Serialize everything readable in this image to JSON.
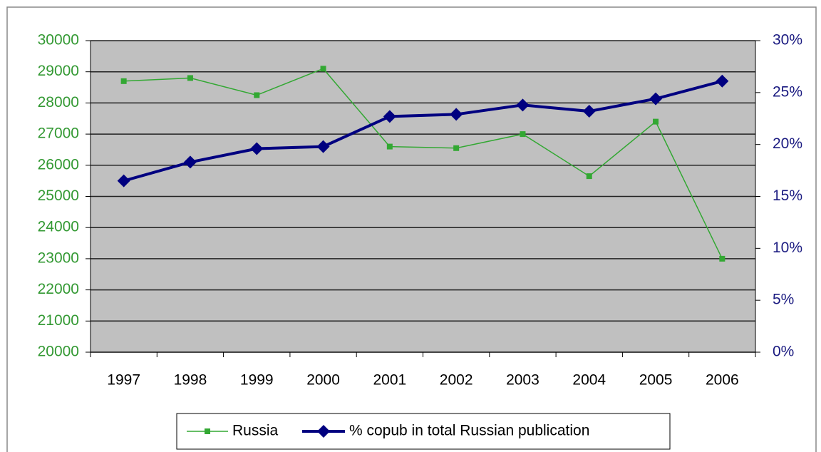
{
  "chart_data": {
    "type": "line",
    "categories": [
      "1997",
      "1998",
      "1999",
      "2000",
      "2001",
      "2002",
      "2003",
      "2004",
      "2005",
      "2006"
    ],
    "series": [
      {
        "name": "Russia",
        "color": "#33a833",
        "axis": "y",
        "values": [
          28700,
          28800,
          28250,
          29100,
          26600,
          26550,
          27000,
          25650,
          27400,
          23000
        ]
      },
      {
        "name": "% copub in total Russian publication",
        "color": "#000080",
        "axis": "y2",
        "values": [
          16.5,
          18.3,
          19.6,
          19.8,
          22.7,
          22.9,
          23.8,
          23.2,
          24.4,
          26.1
        ]
      }
    ],
    "ylim": [
      20000,
      30000
    ],
    "yticks": [
      20000,
      21000,
      22000,
      23000,
      24000,
      25000,
      26000,
      27000,
      28000,
      29000,
      30000
    ],
    "y2lim": [
      0,
      30
    ],
    "y2ticks": [
      {
        "value": 0,
        "label": "0%"
      },
      {
        "value": 5,
        "label": "5%"
      },
      {
        "value": 10,
        "label": "10%"
      },
      {
        "value": 15,
        "label": "15%"
      },
      {
        "value": 20,
        "label": "20%"
      },
      {
        "value": 25,
        "label": "25%"
      },
      {
        "value": 30,
        "label": "30%"
      }
    ],
    "grid": true,
    "legend": "bottom"
  }
}
